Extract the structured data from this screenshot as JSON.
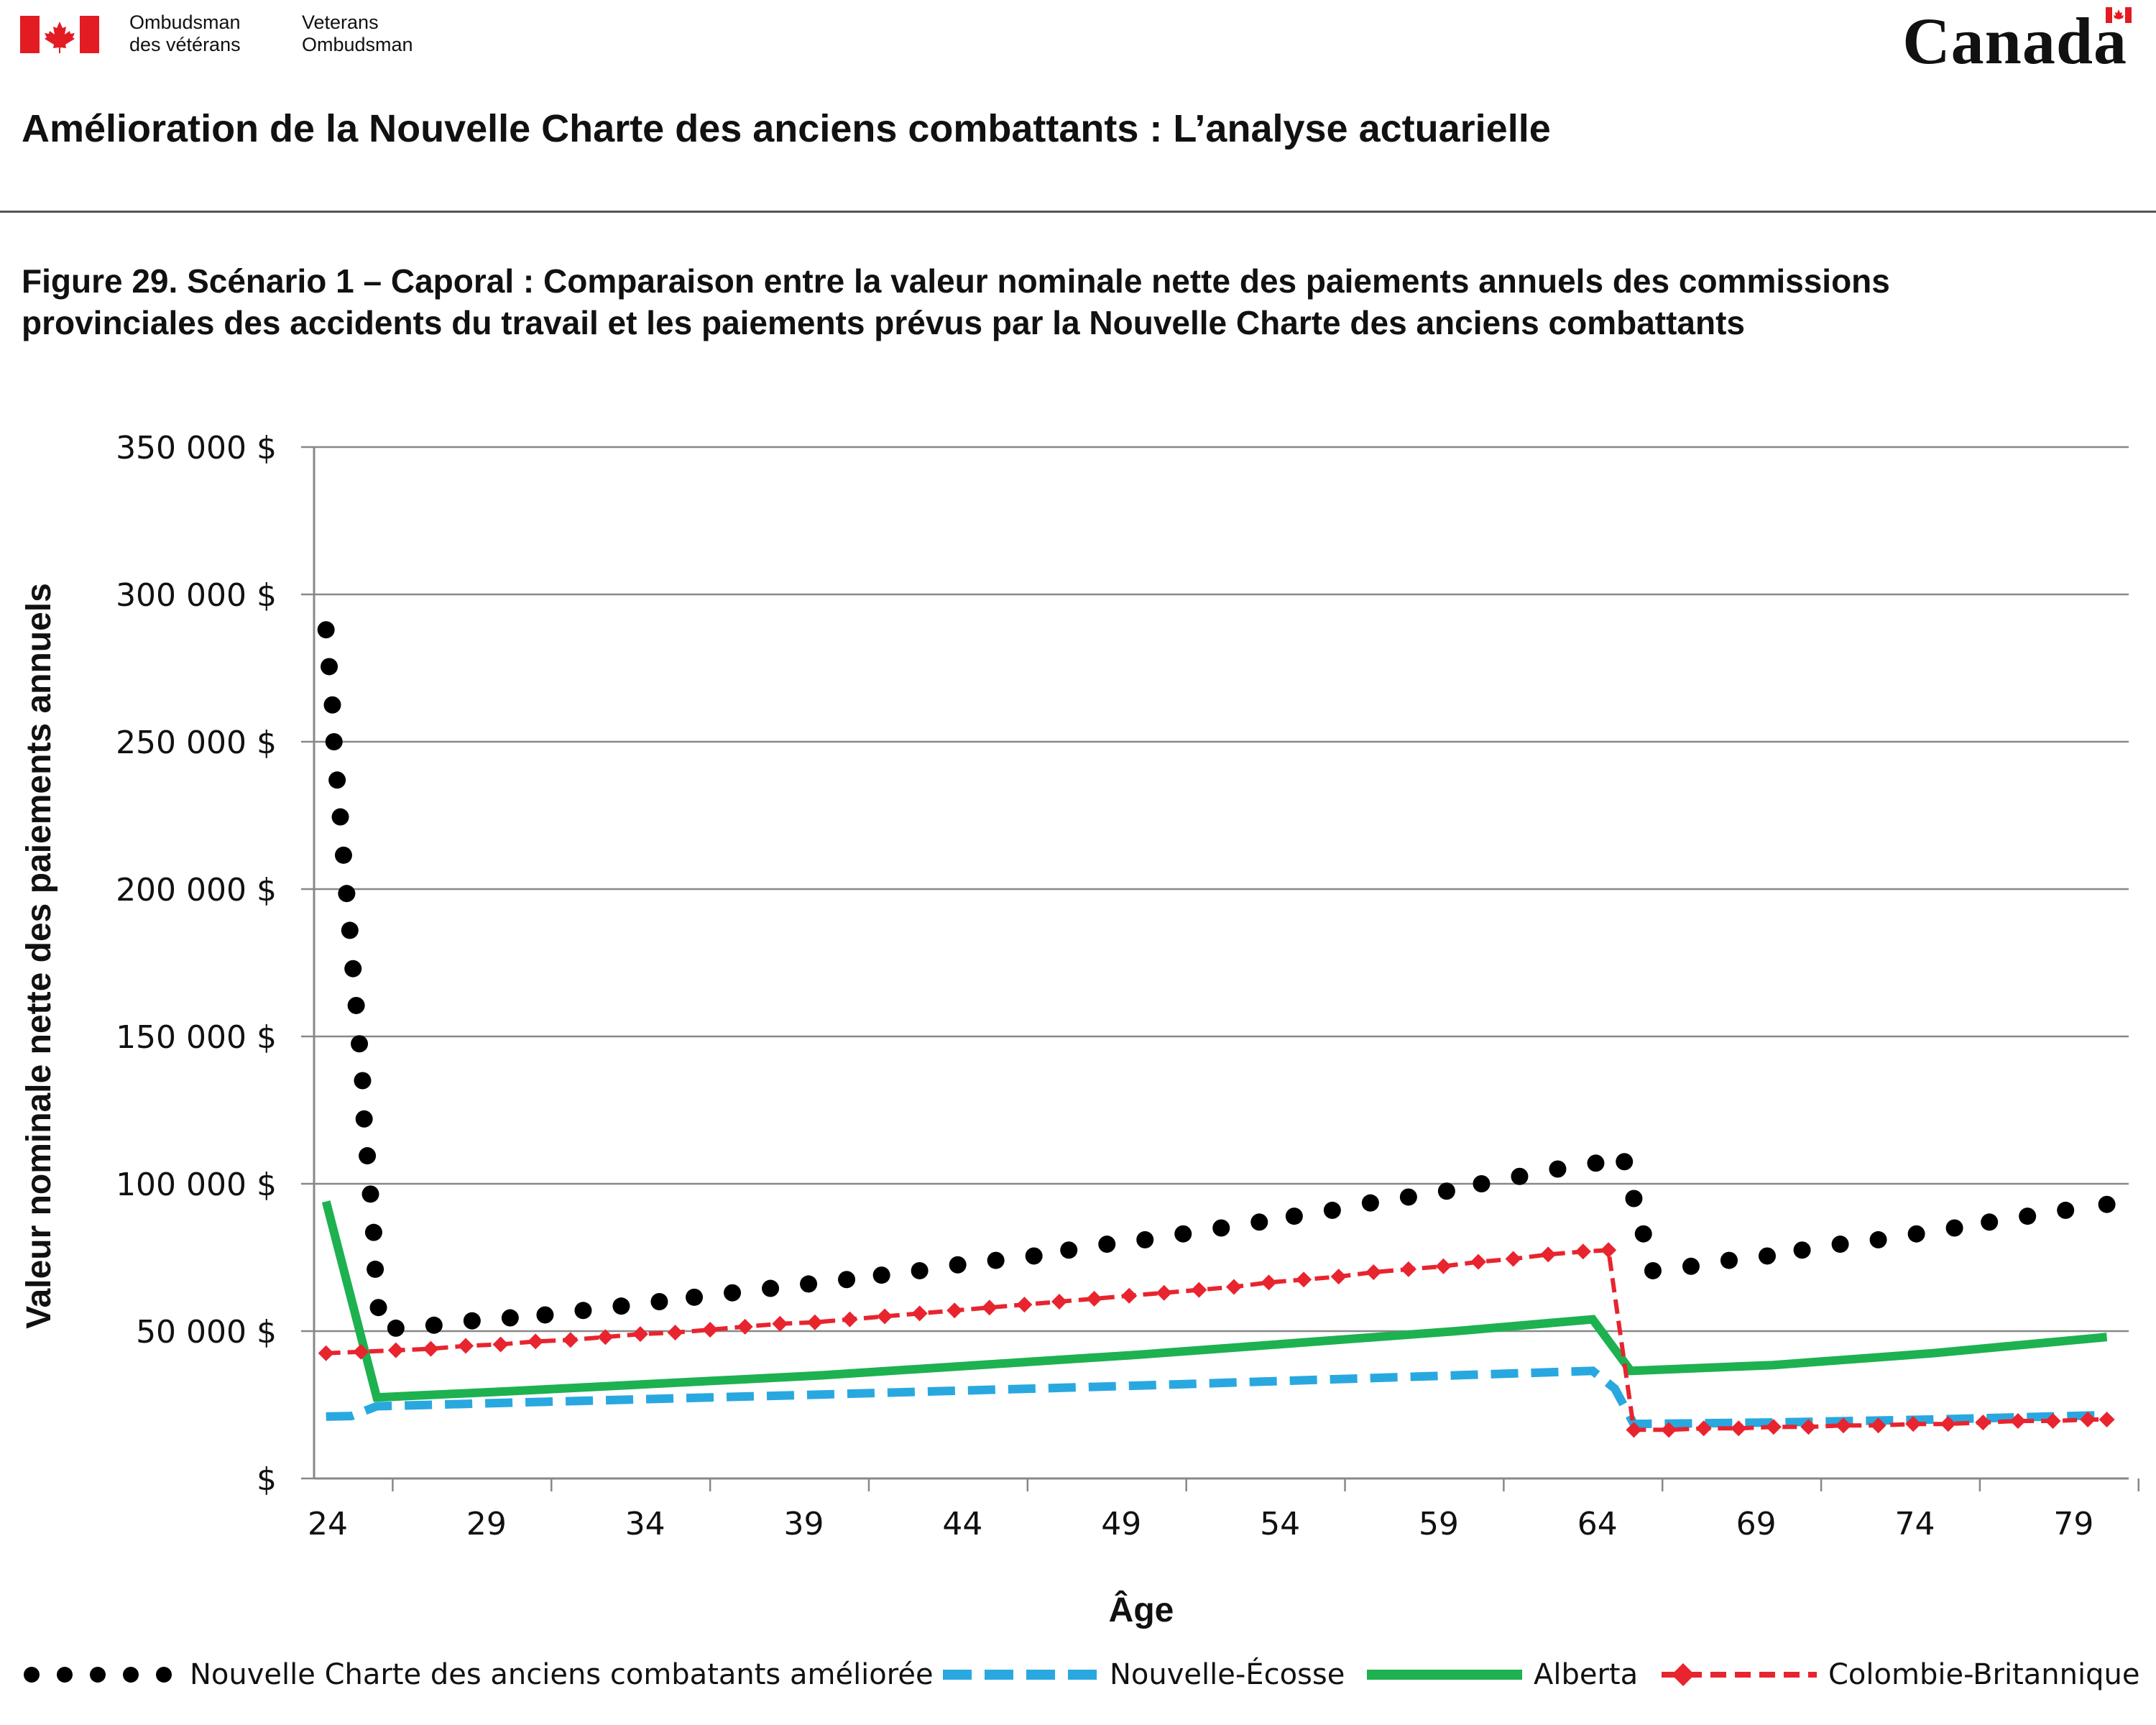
{
  "header": {
    "org_fr_line1": "Ombudsman",
    "org_fr_line2": "des vétérans",
    "org_en_line1": "Veterans",
    "org_en_line2": "Ombudsman",
    "wordmark": "Canada",
    "page_title": "Amélioration de la Nouvelle Charte des anciens combattants : L’analyse actuarielle"
  },
  "figure_title": "Figure 29. Scénario 1 – Caporal : Comparaison entre la valeur nominale nette des paiements annuels des commissions provinciales des accidents du travail et les paiements prévus par la Nouvelle Charte des anciens combattants",
  "colors": {
    "flag_red": "#e31b23",
    "enhanced_nvc": "#000000",
    "nova_scotia": "#29a8e0",
    "alberta": "#1db150",
    "british_columbia": "#e8242e",
    "grid": "#888888"
  },
  "chart_data": {
    "type": "line",
    "title": "",
    "xlabel": "Âge",
    "ylabel": "Valeur nominale nette des paiements annuels",
    "xlim": [
      24,
      80
    ],
    "ylim": [
      0,
      350000
    ],
    "x_ticks": [
      24,
      29,
      34,
      39,
      44,
      49,
      54,
      59,
      64,
      69,
      74,
      79
    ],
    "x_tick_labels": [
      "24",
      "29",
      "34",
      "39",
      "44",
      "49",
      "54",
      "59",
      "64",
      "69",
      "74",
      "79"
    ],
    "y_ticks": [
      0,
      50000,
      100000,
      150000,
      200000,
      250000,
      300000,
      350000
    ],
    "y_tick_labels": [
      "$",
      "50 000 $",
      "100 000 $",
      "150 000 $",
      "200 000 $",
      "250 000 $",
      "300 000 $",
      "350 000 $"
    ],
    "grid": "horizontal",
    "legend_position": "bottom",
    "series": [
      {
        "name": "Nouvelle Charte des anciens combatants améliorée",
        "style": "dotted",
        "color": "#000000",
        "points": [
          [
            24.4,
            288000
          ],
          [
            24.5,
            275500
          ],
          [
            24.6,
            262500
          ],
          [
            24.65,
            250000
          ],
          [
            24.75,
            237000
          ],
          [
            24.85,
            224500
          ],
          [
            24.95,
            211500
          ],
          [
            25.05,
            198500
          ],
          [
            25.15,
            186000
          ],
          [
            25.25,
            173000
          ],
          [
            25.35,
            160500
          ],
          [
            25.45,
            147500
          ],
          [
            25.55,
            135000
          ],
          [
            25.6,
            122000
          ],
          [
            25.7,
            109500
          ],
          [
            25.8,
            96500
          ],
          [
            25.9,
            83500
          ],
          [
            25.95,
            71000
          ],
          [
            26.05,
            58000
          ],
          [
            26.6,
            51000
          ],
          [
            27.8,
            52000
          ],
          [
            29.0,
            53500
          ],
          [
            30.2,
            54500
          ],
          [
            31.3,
            55500
          ],
          [
            32.5,
            57000
          ],
          [
            33.7,
            58500
          ],
          [
            34.9,
            60000
          ],
          [
            36.0,
            61500
          ],
          [
            37.2,
            63000
          ],
          [
            38.4,
            64500
          ],
          [
            39.6,
            66000
          ],
          [
            40.8,
            67500
          ],
          [
            41.9,
            69000
          ],
          [
            43.1,
            70500
          ],
          [
            44.3,
            72500
          ],
          [
            45.5,
            74000
          ],
          [
            46.7,
            75500
          ],
          [
            47.8,
            77500
          ],
          [
            49.0,
            79500
          ],
          [
            50.2,
            81000
          ],
          [
            51.4,
            83000
          ],
          [
            52.6,
            85000
          ],
          [
            53.8,
            87000
          ],
          [
            54.9,
            89000
          ],
          [
            56.1,
            91000
          ],
          [
            57.3,
            93500
          ],
          [
            58.5,
            95500
          ],
          [
            59.7,
            97500
          ],
          [
            60.8,
            100000
          ],
          [
            62.0,
            102500
          ],
          [
            63.2,
            105000
          ],
          [
            64.4,
            107000
          ],
          [
            65.3,
            107500
          ],
          [
            65.6,
            95000
          ],
          [
            65.9,
            83000
          ],
          [
            66.2,
            70500
          ],
          [
            67.4,
            72000
          ],
          [
            68.6,
            74000
          ],
          [
            69.8,
            75500
          ],
          [
            70.9,
            77500
          ],
          [
            72.1,
            79500
          ],
          [
            73.3,
            81000
          ],
          [
            74.5,
            83000
          ],
          [
            75.7,
            85000
          ],
          [
            76.8,
            87000
          ],
          [
            78.0,
            89000
          ],
          [
            79.2,
            91000
          ],
          [
            80.5,
            93000
          ]
        ]
      },
      {
        "name": "Nouvelle-Écosse",
        "style": "dashed",
        "color": "#29a8e0",
        "points": [
          [
            24.4,
            21000
          ],
          [
            25.2,
            21200
          ],
          [
            26.0,
            24500
          ],
          [
            40.0,
            28500
          ],
          [
            50.0,
            31500
          ],
          [
            60.0,
            35000
          ],
          [
            64.3,
            36500
          ],
          [
            65.0,
            30500
          ],
          [
            65.6,
            18500
          ],
          [
            70.0,
            19000
          ],
          [
            75.0,
            20000
          ],
          [
            80.5,
            21500
          ]
        ]
      },
      {
        "name": "Alberta",
        "style": "solid",
        "color": "#1db150",
        "points": [
          [
            24.4,
            94000
          ],
          [
            26.0,
            27500
          ],
          [
            30.0,
            29500
          ],
          [
            40.0,
            35000
          ],
          [
            50.0,
            42000
          ],
          [
            60.0,
            50000
          ],
          [
            64.3,
            54000
          ],
          [
            65.5,
            36500
          ],
          [
            70.0,
            38500
          ],
          [
            75.0,
            42500
          ],
          [
            80.5,
            48000
          ]
        ]
      },
      {
        "name": "Colombie-Britannique",
        "style": "dashed-diamond",
        "color": "#e8242e",
        "points": [
          [
            24.4,
            42500
          ],
          [
            25.5,
            43000
          ],
          [
            26.6,
            43500
          ],
          [
            27.7,
            44000
          ],
          [
            28.8,
            45000
          ],
          [
            29.9,
            45500
          ],
          [
            31.0,
            46500
          ],
          [
            32.1,
            47000
          ],
          [
            33.2,
            48000
          ],
          [
            34.3,
            49000
          ],
          [
            35.4,
            49500
          ],
          [
            36.5,
            50500
          ],
          [
            37.6,
            51500
          ],
          [
            38.7,
            52500
          ],
          [
            39.8,
            53000
          ],
          [
            40.9,
            54000
          ],
          [
            42.0,
            55000
          ],
          [
            43.1,
            56000
          ],
          [
            44.2,
            57000
          ],
          [
            45.3,
            58000
          ],
          [
            46.4,
            59000
          ],
          [
            47.5,
            60000
          ],
          [
            48.6,
            61000
          ],
          [
            49.7,
            62000
          ],
          [
            50.8,
            63000
          ],
          [
            51.9,
            64000
          ],
          [
            53.0,
            65000
          ],
          [
            54.1,
            66500
          ],
          [
            55.2,
            67500
          ],
          [
            56.3,
            68500
          ],
          [
            57.4,
            70000
          ],
          [
            58.5,
            71000
          ],
          [
            59.6,
            72000
          ],
          [
            60.7,
            73500
          ],
          [
            61.8,
            74500
          ],
          [
            62.9,
            76000
          ],
          [
            64.0,
            77000
          ],
          [
            64.8,
            77500
          ],
          [
            65.6,
            16500
          ],
          [
            66.7,
            16500
          ],
          [
            67.8,
            17000
          ],
          [
            68.9,
            17000
          ],
          [
            70.0,
            17500
          ],
          [
            71.1,
            17500
          ],
          [
            72.2,
            18000
          ],
          [
            73.3,
            18000
          ],
          [
            74.4,
            18500
          ],
          [
            75.5,
            18500
          ],
          [
            76.6,
            19000
          ],
          [
            77.7,
            19500
          ],
          [
            78.8,
            19500
          ],
          [
            79.9,
            20000
          ],
          [
            80.5,
            20000
          ]
        ]
      }
    ]
  }
}
